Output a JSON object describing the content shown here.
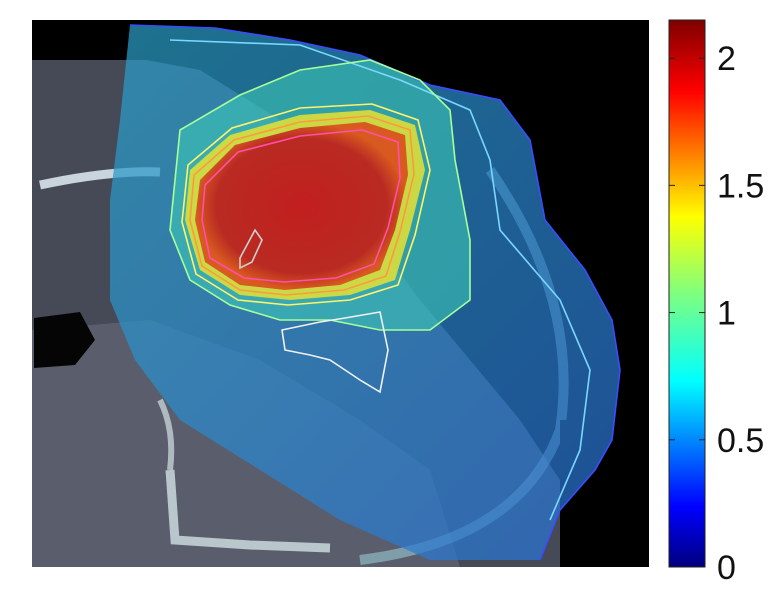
{
  "colorbar": {
    "colormap": "jet",
    "range": [
      0,
      2.15
    ],
    "ticks": [
      {
        "value": 0,
        "label": "0"
      },
      {
        "value": 0.5,
        "label": "0.5"
      },
      {
        "value": 1,
        "label": "1"
      },
      {
        "value": 1.5,
        "label": "1.5"
      },
      {
        "value": 2,
        "label": "2"
      }
    ]
  },
  "image": {
    "kind": "CT slice with radiotherapy dose overlay",
    "background": "#000000"
  }
}
